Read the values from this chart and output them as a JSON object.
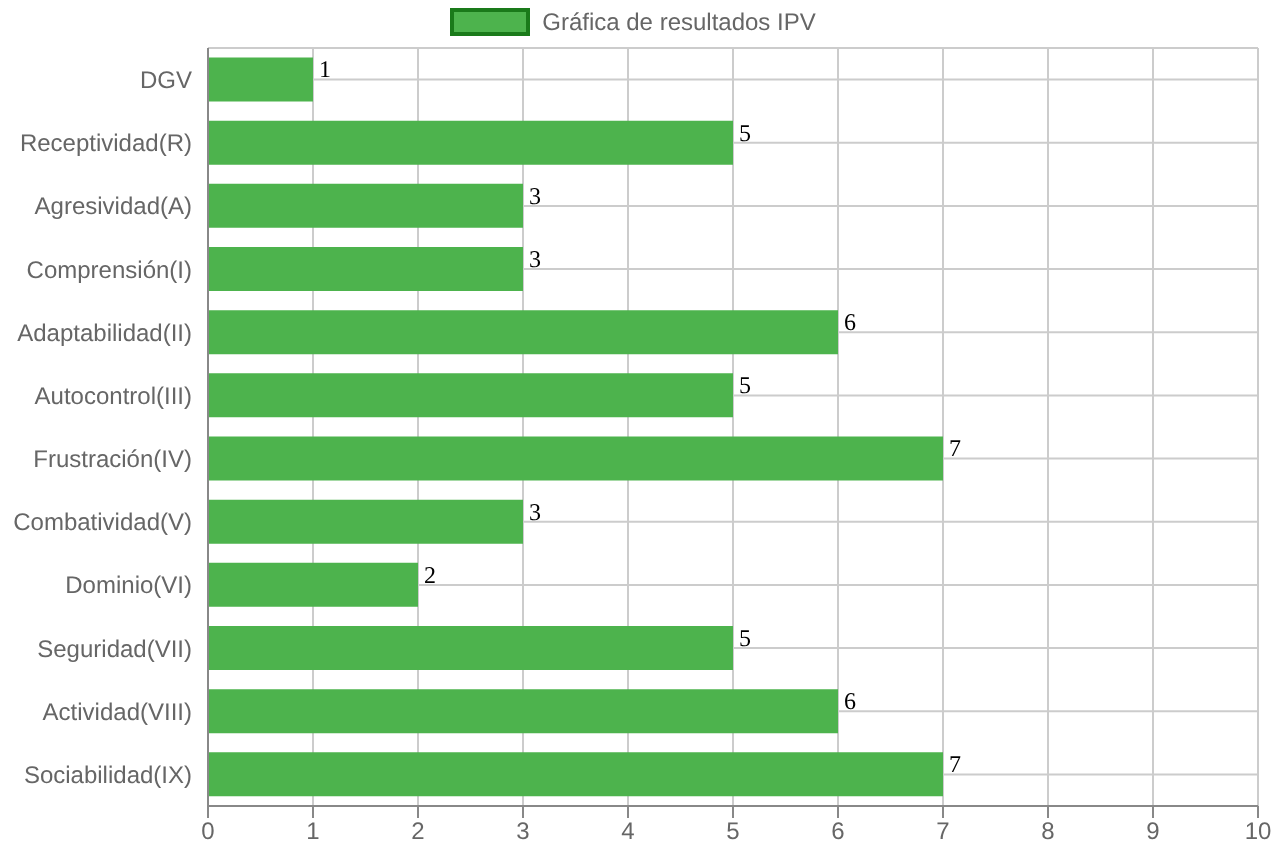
{
  "chart_data": {
    "type": "bar",
    "orientation": "horizontal",
    "categories": [
      "DGV",
      "Receptividad(R)",
      "Agresividad(A)",
      "Comprensión(I)",
      "Adaptabilidad(II)",
      "Autocontrol(III)",
      "Frustración(IV)",
      "Combatividad(V)",
      "Dominio(VI)",
      "Seguridad(VII)",
      "Actividad(VIII)",
      "Sociabilidad(IX)"
    ],
    "series": [
      {
        "name": "Gráfica de resultados IPV",
        "color": "#4db34d",
        "values": [
          1,
          5,
          3,
          3,
          6,
          5,
          7,
          3,
          2,
          5,
          6,
          7
        ]
      }
    ],
    "xlim": [
      0,
      10
    ],
    "xticks": [
      0,
      1,
      2,
      3,
      4,
      5,
      6,
      7,
      8,
      9,
      10
    ],
    "grid": true,
    "legend": "top",
    "data_labels": true
  }
}
